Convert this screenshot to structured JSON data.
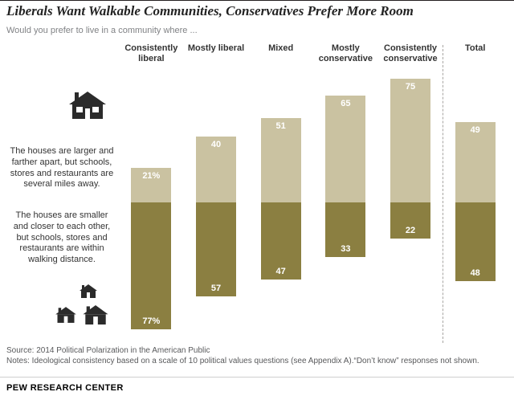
{
  "header": {
    "title": "Liberals Want Walkable Communities, Conservatives Prefer More Room",
    "subtitle": "Would you prefer to live in a community where ..."
  },
  "legend": {
    "larger": "The houses are larger and farther apart, but schools, stores and restaurants are several miles away.",
    "smaller": "The houses are smaller and closer to each other, but schools, stores and restaurants are within walking distance.",
    "large_house_icon": "house-icon",
    "small_houses_icon": "houses-icon"
  },
  "chart_data": {
    "type": "bar",
    "subtype": "diverging-stacked-vertical",
    "title": "Liberals Want Walkable Communities, Conservatives Prefer More Room",
    "categories": [
      "Consistently liberal",
      "Mostly liberal",
      "Mixed",
      "Mostly conservative",
      "Consistently conservative",
      "Total"
    ],
    "series": [
      {
        "name": "larger-farther",
        "label": "The houses are larger and farther apart, but schools, stores and restaurants are several miles away.",
        "direction": "up",
        "color": "#cac2a1",
        "values": [
          21,
          40,
          51,
          65,
          75,
          49
        ],
        "display": [
          "21%",
          "40",
          "51",
          "65",
          "75",
          "49"
        ]
      },
      {
        "name": "smaller-closer",
        "label": "The houses are smaller and closer to each other, but schools, stores and restaurants are within walking distance.",
        "direction": "down",
        "color": "#8b7f41",
        "values": [
          77,
          57,
          47,
          33,
          22,
          48
        ],
        "display": [
          "77%",
          "57",
          "47",
          "33",
          "22",
          "48"
        ]
      }
    ],
    "value_unit": "%",
    "divider_before_category": "Total",
    "legend_position": "left",
    "grid": false,
    "axes_hidden": true
  },
  "footer": {
    "source": "Source: 2014 Political Polarization in the American Public",
    "notes": "Notes: Ideological consistency based on a scale of 10 political values questions (see Appendix A).“Don’t know” responses not shown.",
    "brand": "PEW RESEARCH CENTER"
  }
}
